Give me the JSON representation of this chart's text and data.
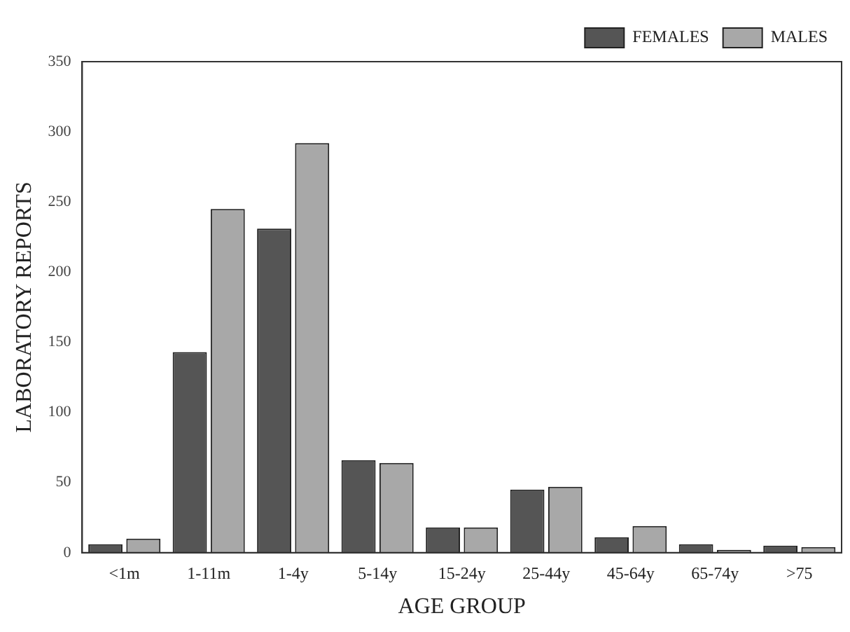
{
  "chart_data": {
    "type": "bar",
    "xlabel": "AGE GROUP",
    "ylabel": "LABORATORY REPORTS",
    "categories": [
      "<1m",
      "1-11m",
      "1-4y",
      "5-14y",
      "15-24y",
      "25-44y",
      "45-64y",
      "65-74y",
      ">75"
    ],
    "series": [
      {
        "name": "FEMALES",
        "color": "#555555",
        "values": [
          6,
          143,
          231,
          66,
          18,
          45,
          11,
          6,
          5
        ]
      },
      {
        "name": "MALES",
        "color": "#a8a8a8",
        "values": [
          10,
          245,
          292,
          64,
          18,
          47,
          19,
          2,
          4
        ]
      }
    ],
    "ylim": [
      0,
      350
    ],
    "yticks": [
      0,
      50,
      100,
      150,
      200,
      250,
      300,
      350
    ],
    "grid": false,
    "legend": "top right"
  }
}
